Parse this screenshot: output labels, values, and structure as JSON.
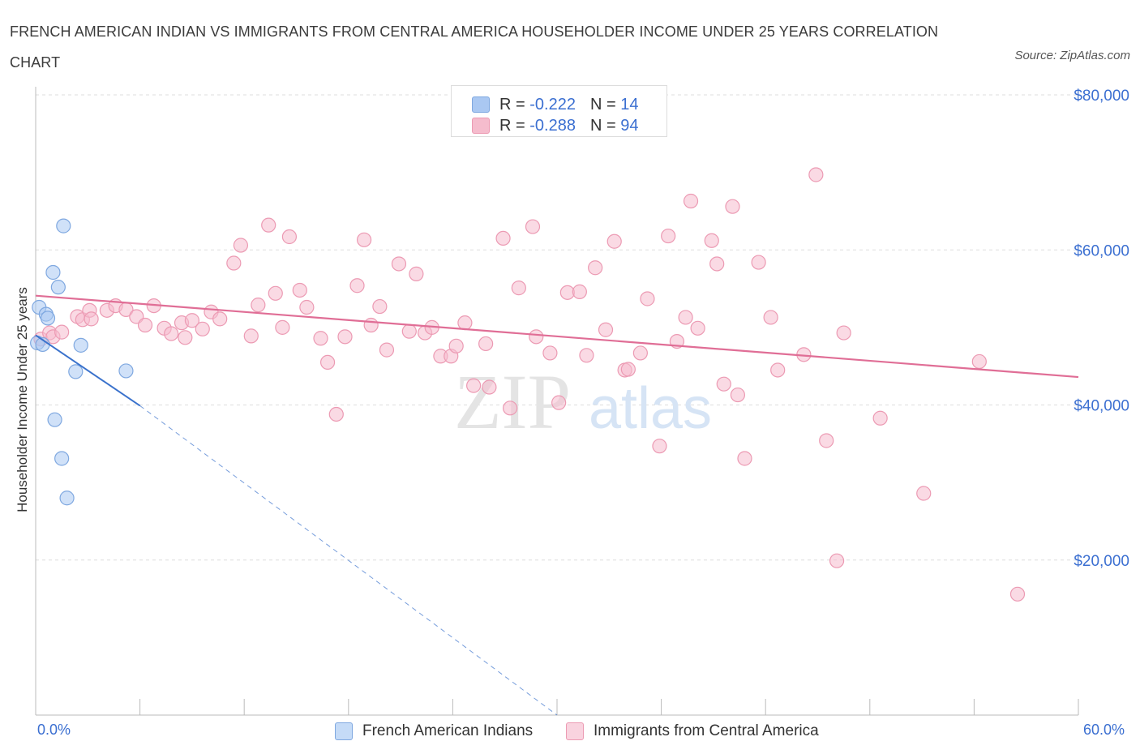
{
  "title": "FRENCH AMERICAN INDIAN VS IMMIGRANTS FROM CENTRAL AMERICA HOUSEHOLDER INCOME UNDER 25 YEARS CORRELATION CHART",
  "source": "Source: ZipAtlas.com",
  "colors": {
    "blue_fill": "#aac8f2",
    "blue_stroke": "#7fa8e0",
    "blue_line": "#3a72cc",
    "pink_fill": "#f5bccd",
    "pink_stroke": "#ec9ab3",
    "pink_line": "#e06e96",
    "axis_text": "#3b6fd1",
    "grid": "#dddddd"
  },
  "legend": {
    "series1": {
      "r_label": "R =",
      "r_value": "-0.222",
      "n_label": "N =",
      "n_value": "14"
    },
    "series2": {
      "r_label": "R =",
      "r_value": "-0.288",
      "n_label": "N =",
      "n_value": "94"
    }
  },
  "watermark": {
    "part1": "ZIP",
    "part2": "atlas"
  },
  "chart_data": {
    "type": "scatter",
    "title": "FRENCH AMERICAN INDIAN VS IMMIGRANTS FROM CENTRAL AMERICA HOUSEHOLDER INCOME UNDER 25 YEARS CORRELATION CHART",
    "xlabel": "",
    "ylabel": "Householder Income Under 25 years",
    "xlim": [
      0,
      60
    ],
    "ylim": [
      0,
      80000
    ],
    "x_tick_labels": [
      "0.0%",
      "60.0%"
    ],
    "y_ticks": [
      20000,
      40000,
      60000,
      80000
    ],
    "y_tick_labels": [
      "$20,000",
      "$40,000",
      "$60,000",
      "$80,000"
    ],
    "grid": true,
    "legend_position": "bottom",
    "series": [
      {
        "name": "French American Indians",
        "color": "blue",
        "trend": {
          "x": [
            0,
            6.0
          ],
          "y": [
            49000,
            39900
          ],
          "extended_to": [
            30.0,
            0
          ]
        },
        "points": [
          [
            0.1,
            48000
          ],
          [
            0.2,
            52600
          ],
          [
            0.4,
            47800
          ],
          [
            0.6,
            51700
          ],
          [
            0.7,
            51200
          ],
          [
            1.0,
            57100
          ],
          [
            1.3,
            55200
          ],
          [
            1.6,
            63100
          ],
          [
            1.1,
            38100
          ],
          [
            1.5,
            33100
          ],
          [
            1.8,
            28000
          ],
          [
            2.3,
            44300
          ],
          [
            2.6,
            47700
          ],
          [
            5.2,
            44400
          ]
        ]
      },
      {
        "name": "Immigrants from Central America",
        "color": "pink",
        "trend": {
          "x": [
            0,
            60
          ],
          "y": [
            54100,
            43600
          ]
        },
        "points": [
          [
            0.3,
            48500
          ],
          [
            0.8,
            49300
          ],
          [
            1.0,
            48800
          ],
          [
            1.5,
            49400
          ],
          [
            2.4,
            51400
          ],
          [
            2.7,
            51000
          ],
          [
            3.1,
            52200
          ],
          [
            3.2,
            51100
          ],
          [
            4.1,
            52200
          ],
          [
            4.6,
            52800
          ],
          [
            5.2,
            52300
          ],
          [
            5.8,
            51400
          ],
          [
            6.3,
            50300
          ],
          [
            6.8,
            52800
          ],
          [
            7.4,
            49900
          ],
          [
            7.8,
            49200
          ],
          [
            8.4,
            50600
          ],
          [
            8.6,
            48700
          ],
          [
            9.0,
            50900
          ],
          [
            9.6,
            49800
          ],
          [
            10.1,
            52000
          ],
          [
            10.6,
            51100
          ],
          [
            11.4,
            58300
          ],
          [
            11.8,
            60600
          ],
          [
            12.4,
            48900
          ],
          [
            12.8,
            52900
          ],
          [
            13.4,
            63200
          ],
          [
            13.8,
            54400
          ],
          [
            14.2,
            50000
          ],
          [
            14.6,
            61700
          ],
          [
            15.2,
            54800
          ],
          [
            15.6,
            52600
          ],
          [
            16.4,
            48600
          ],
          [
            16.8,
            45500
          ],
          [
            17.3,
            38800
          ],
          [
            17.8,
            48800
          ],
          [
            18.5,
            55400
          ],
          [
            18.9,
            61300
          ],
          [
            19.3,
            50300
          ],
          [
            19.8,
            52700
          ],
          [
            20.2,
            47100
          ],
          [
            20.9,
            58200
          ],
          [
            21.5,
            49500
          ],
          [
            21.9,
            56900
          ],
          [
            22.4,
            49300
          ],
          [
            22.8,
            50000
          ],
          [
            23.3,
            46300
          ],
          [
            23.9,
            46300
          ],
          [
            24.2,
            47600
          ],
          [
            24.7,
            50600
          ],
          [
            25.2,
            42500
          ],
          [
            25.9,
            47900
          ],
          [
            26.1,
            42300
          ],
          [
            26.9,
            61500
          ],
          [
            27.3,
            39600
          ],
          [
            27.8,
            55100
          ],
          [
            28.6,
            63000
          ],
          [
            28.8,
            48800
          ],
          [
            29.6,
            46700
          ],
          [
            30.1,
            40300
          ],
          [
            30.6,
            54500
          ],
          [
            31.3,
            54600
          ],
          [
            31.7,
            46400
          ],
          [
            32.2,
            57700
          ],
          [
            32.8,
            49700
          ],
          [
            33.3,
            61100
          ],
          [
            33.9,
            44500
          ],
          [
            34.1,
            44600
          ],
          [
            34.8,
            46700
          ],
          [
            35.2,
            53700
          ],
          [
            35.9,
            34700
          ],
          [
            36.4,
            61800
          ],
          [
            36.9,
            48200
          ],
          [
            37.4,
            51300
          ],
          [
            37.7,
            66300
          ],
          [
            38.1,
            49900
          ],
          [
            38.9,
            61200
          ],
          [
            39.2,
            58200
          ],
          [
            39.6,
            42700
          ],
          [
            40.1,
            65600
          ],
          [
            40.4,
            41300
          ],
          [
            40.8,
            33100
          ],
          [
            41.6,
            58400
          ],
          [
            42.3,
            51300
          ],
          [
            42.7,
            44500
          ],
          [
            44.2,
            46500
          ],
          [
            44.9,
            69700
          ],
          [
            45.5,
            35400
          ],
          [
            46.1,
            19900
          ],
          [
            46.5,
            49300
          ],
          [
            48.6,
            38300
          ],
          [
            51.1,
            28600
          ],
          [
            54.3,
            45600
          ],
          [
            56.5,
            15600
          ]
        ]
      }
    ]
  }
}
